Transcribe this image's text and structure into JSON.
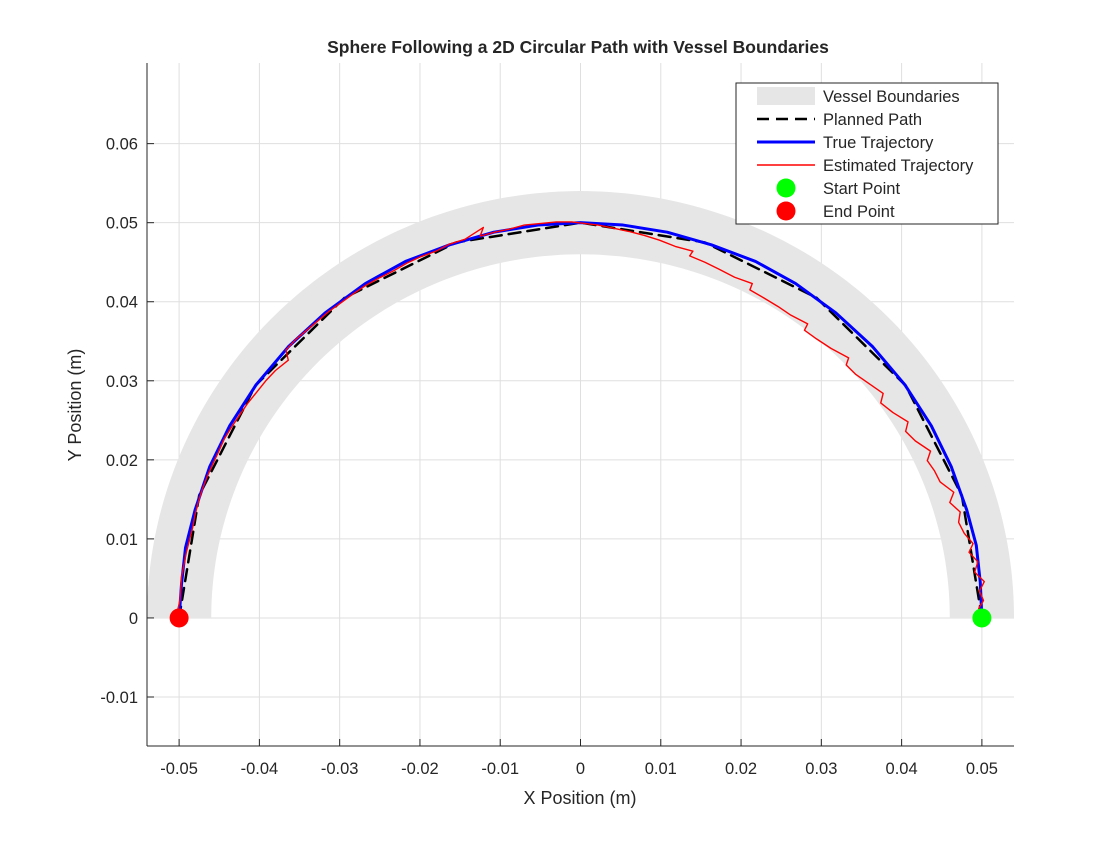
{
  "chart_data": {
    "type": "line",
    "title": "Sphere Following a 2D Circular Path with Vessel Boundaries",
    "xlabel": "X Position (m)",
    "ylabel": "Y Position (m)",
    "xlim": [
      -0.054,
      0.054
    ],
    "ylim": [
      -0.0162,
      0.0702
    ],
    "xticks": [
      -0.05,
      -0.04,
      -0.03,
      -0.02,
      -0.01,
      0,
      0.01,
      0.02,
      0.03,
      0.04,
      0.05
    ],
    "xtick_labels": [
      "-0.05",
      "-0.04",
      "-0.03",
      "-0.02",
      "-0.01",
      "0",
      "0.01",
      "0.02",
      "0.03",
      "0.04",
      "0.05"
    ],
    "yticks": [
      -0.01,
      0,
      0.01,
      0.02,
      0.03,
      0.04,
      0.05,
      0.06
    ],
    "ytick_labels": [
      "-0.01",
      "0",
      "0.01",
      "0.02",
      "0.03",
      "0.04",
      "0.05",
      "0.06"
    ],
    "grid": true,
    "legend_position": "top-right",
    "vessel": {
      "center": [
        0,
        0
      ],
      "radius": 0.05,
      "inner_radius": 0.046,
      "outer_radius": 0.054,
      "color": "#e6e6e6"
    },
    "series": [
      {
        "name": "Vessel Boundaries",
        "style": "band",
        "color": "#e6e6e6"
      },
      {
        "name": "Planned Path",
        "style": "dashed",
        "color": "#000000",
        "x": [
          0.05,
          0.0475,
          0.0405,
          0.0294,
          0.0155,
          0,
          -0.0155,
          -0.0294,
          -0.0405,
          -0.0475,
          -0.05
        ],
        "y": [
          0,
          0.0155,
          0.0294,
          0.0405,
          0.0475,
          0.05,
          0.0475,
          0.0405,
          0.0294,
          0.0155,
          0
        ]
      },
      {
        "name": "True Trajectory",
        "style": "solid",
        "color": "#0000ff",
        "x": [
          0.05,
          0.0498,
          0.0493,
          0.0481,
          0.0462,
          0.0437,
          0.0404,
          0.0364,
          0.0318,
          0.0268,
          0.0218,
          0.0163,
          0.0108,
          0.0053,
          0,
          -0.0053,
          -0.0108,
          -0.0163,
          -0.0218,
          -0.0268,
          -0.0318,
          -0.0364,
          -0.0404,
          -0.0437,
          -0.0462,
          -0.048,
          -0.0492,
          -0.0497,
          -0.05
        ],
        "y": [
          0,
          0.0045,
          0.0092,
          0.0137,
          0.0191,
          0.0243,
          0.0295,
          0.0343,
          0.0386,
          0.0423,
          0.0451,
          0.0472,
          0.0488,
          0.0497,
          0.05,
          0.0497,
          0.0488,
          0.0472,
          0.0451,
          0.0423,
          0.0386,
          0.0343,
          0.0295,
          0.0243,
          0.0191,
          0.0137,
          0.0089,
          0.0043,
          0
        ]
      },
      {
        "name": "Estimated Trajectory",
        "style": "solid-thin",
        "color": "#ff0000",
        "x": [
          0.0501,
          0.0496,
          0.0502,
          0.0497,
          0.0503,
          0.0491,
          0.0495,
          0.0484,
          0.0489,
          0.0478,
          0.0471,
          0.0473,
          0.046,
          0.0465,
          0.0448,
          0.0441,
          0.0432,
          0.0436,
          0.0417,
          0.0405,
          0.0408,
          0.0389,
          0.0374,
          0.0377,
          0.036,
          0.0343,
          0.0331,
          0.0334,
          0.0312,
          0.0294,
          0.0279,
          0.0283,
          0.0262,
          0.0246,
          0.0228,
          0.0211,
          0.0214,
          0.0192,
          0.0173,
          0.0155,
          0.0136,
          0.014,
          0.0118,
          0.0098,
          0.0079,
          0.006,
          0.0041,
          0.0022,
          0.0005,
          -0.0011,
          -0.003,
          -0.0049,
          -0.007,
          -0.0088,
          -0.0107,
          -0.0125,
          -0.0121,
          -0.0144,
          -0.0163,
          -0.018,
          -0.0199,
          -0.0216,
          -0.0233,
          -0.0251,
          -0.0267,
          -0.0283,
          -0.0298,
          -0.0313,
          -0.0327,
          -0.0341,
          -0.0355,
          -0.0367,
          -0.0364,
          -0.038,
          -0.0392,
          -0.0403,
          -0.0415,
          -0.0425,
          -0.0435,
          -0.0444,
          -0.0451,
          -0.0458,
          -0.0465,
          -0.0471,
          -0.0476,
          -0.048,
          -0.0483,
          -0.0487,
          -0.0491,
          -0.0494,
          -0.0497,
          -0.0498,
          -0.0499,
          -0.0502,
          -0.0497,
          -0.0503,
          -0.0499,
          -0.0501
        ],
        "y": [
          0.0003,
          0.0012,
          0.0022,
          0.0034,
          0.0046,
          0.0058,
          0.0071,
          0.0083,
          0.0094,
          0.0107,
          0.0121,
          0.0134,
          0.0146,
          0.0159,
          0.0172,
          0.0186,
          0.0199,
          0.0211,
          0.0224,
          0.0236,
          0.0248,
          0.026,
          0.0272,
          0.0284,
          0.0296,
          0.0308,
          0.032,
          0.0329,
          0.0341,
          0.0353,
          0.0364,
          0.0372,
          0.0383,
          0.0394,
          0.0405,
          0.0415,
          0.0423,
          0.0431,
          0.0441,
          0.045,
          0.0458,
          0.0464,
          0.047,
          0.0478,
          0.0484,
          0.0489,
          0.0493,
          0.0497,
          0.0499,
          0.0501,
          0.0501,
          0.0499,
          0.0497,
          0.0492,
          0.0488,
          0.0483,
          0.0494,
          0.0479,
          0.0473,
          0.0464,
          0.0457,
          0.0449,
          0.0439,
          0.043,
          0.0421,
          0.041,
          0.0399,
          0.0388,
          0.0376,
          0.0364,
          0.0352,
          0.0339,
          0.0326,
          0.0313,
          0.03,
          0.0286,
          0.0271,
          0.0256,
          0.0241,
          0.0226,
          0.021,
          0.0195,
          0.0179,
          0.0163,
          0.0147,
          0.0131,
          0.0115,
          0.0099,
          0.0083,
          0.0067,
          0.0052,
          0.0037,
          0.0022,
          0.0009,
          0.0002,
          -0.0003,
          0.0001,
          -0.0001
        ]
      },
      {
        "name": "Start Point",
        "style": "marker",
        "color": "#00ff00",
        "x": [
          0.05
        ],
        "y": [
          0
        ]
      },
      {
        "name": "End Point",
        "style": "marker",
        "color": "#ff0000",
        "x": [
          -0.05
        ],
        "y": [
          0
        ]
      }
    ]
  }
}
